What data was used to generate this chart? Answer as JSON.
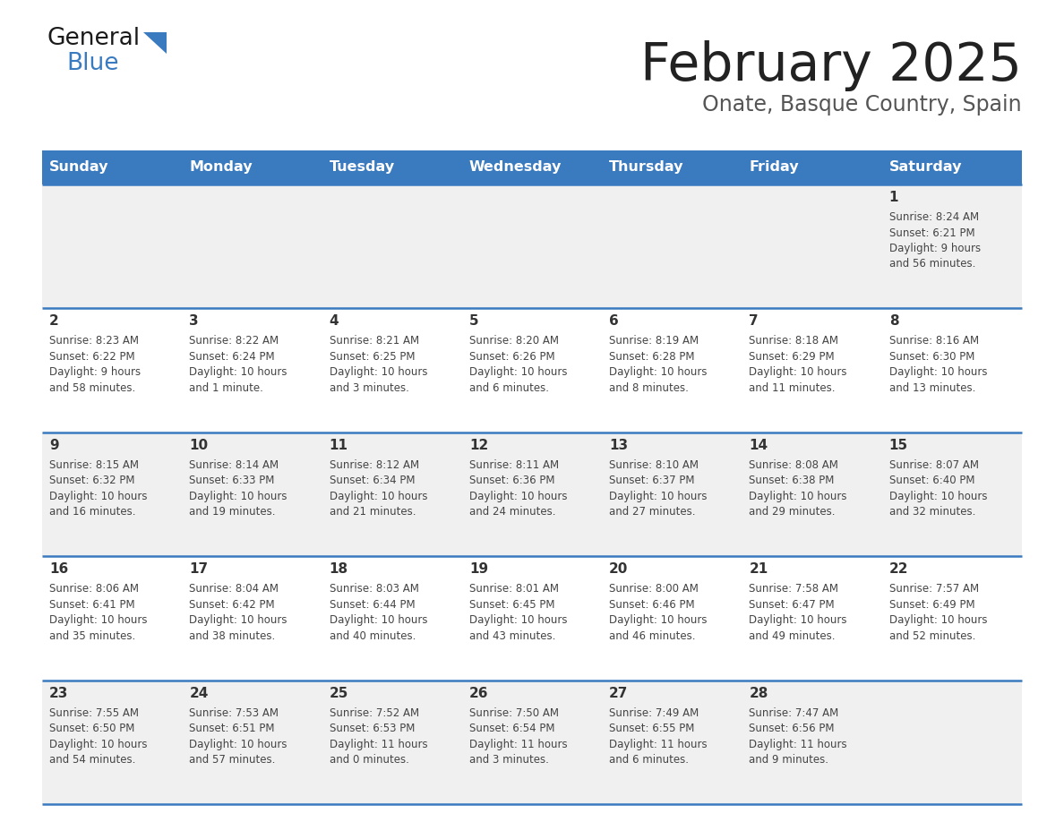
{
  "title": "February 2025",
  "subtitle": "Onate, Basque Country, Spain",
  "days_of_week": [
    "Sunday",
    "Monday",
    "Tuesday",
    "Wednesday",
    "Thursday",
    "Friday",
    "Saturday"
  ],
  "header_bg": "#3a7abf",
  "header_text": "#ffffff",
  "row_bg_light": "#f0f0f0",
  "row_bg_white": "#ffffff",
  "border_color": "#3a7abf",
  "day_number_color": "#333333",
  "cell_text_color": "#444444",
  "title_color": "#222222",
  "subtitle_color": "#555555",
  "weeks": [
    [
      {
        "day": null,
        "sunrise": null,
        "sunset": null,
        "daylight": null
      },
      {
        "day": null,
        "sunrise": null,
        "sunset": null,
        "daylight": null
      },
      {
        "day": null,
        "sunrise": null,
        "sunset": null,
        "daylight": null
      },
      {
        "day": null,
        "sunrise": null,
        "sunset": null,
        "daylight": null
      },
      {
        "day": null,
        "sunrise": null,
        "sunset": null,
        "daylight": null
      },
      {
        "day": null,
        "sunrise": null,
        "sunset": null,
        "daylight": null
      },
      {
        "day": 1,
        "sunrise": "8:24 AM",
        "sunset": "6:21 PM",
        "daylight": "9 hours\nand 56 minutes."
      }
    ],
    [
      {
        "day": 2,
        "sunrise": "8:23 AM",
        "sunset": "6:22 PM",
        "daylight": "9 hours\nand 58 minutes."
      },
      {
        "day": 3,
        "sunrise": "8:22 AM",
        "sunset": "6:24 PM",
        "daylight": "10 hours\nand 1 minute."
      },
      {
        "day": 4,
        "sunrise": "8:21 AM",
        "sunset": "6:25 PM",
        "daylight": "10 hours\nand 3 minutes."
      },
      {
        "day": 5,
        "sunrise": "8:20 AM",
        "sunset": "6:26 PM",
        "daylight": "10 hours\nand 6 minutes."
      },
      {
        "day": 6,
        "sunrise": "8:19 AM",
        "sunset": "6:28 PM",
        "daylight": "10 hours\nand 8 minutes."
      },
      {
        "day": 7,
        "sunrise": "8:18 AM",
        "sunset": "6:29 PM",
        "daylight": "10 hours\nand 11 minutes."
      },
      {
        "day": 8,
        "sunrise": "8:16 AM",
        "sunset": "6:30 PM",
        "daylight": "10 hours\nand 13 minutes."
      }
    ],
    [
      {
        "day": 9,
        "sunrise": "8:15 AM",
        "sunset": "6:32 PM",
        "daylight": "10 hours\nand 16 minutes."
      },
      {
        "day": 10,
        "sunrise": "8:14 AM",
        "sunset": "6:33 PM",
        "daylight": "10 hours\nand 19 minutes."
      },
      {
        "day": 11,
        "sunrise": "8:12 AM",
        "sunset": "6:34 PM",
        "daylight": "10 hours\nand 21 minutes."
      },
      {
        "day": 12,
        "sunrise": "8:11 AM",
        "sunset": "6:36 PM",
        "daylight": "10 hours\nand 24 minutes."
      },
      {
        "day": 13,
        "sunrise": "8:10 AM",
        "sunset": "6:37 PM",
        "daylight": "10 hours\nand 27 minutes."
      },
      {
        "day": 14,
        "sunrise": "8:08 AM",
        "sunset": "6:38 PM",
        "daylight": "10 hours\nand 29 minutes."
      },
      {
        "day": 15,
        "sunrise": "8:07 AM",
        "sunset": "6:40 PM",
        "daylight": "10 hours\nand 32 minutes."
      }
    ],
    [
      {
        "day": 16,
        "sunrise": "8:06 AM",
        "sunset": "6:41 PM",
        "daylight": "10 hours\nand 35 minutes."
      },
      {
        "day": 17,
        "sunrise": "8:04 AM",
        "sunset": "6:42 PM",
        "daylight": "10 hours\nand 38 minutes."
      },
      {
        "day": 18,
        "sunrise": "8:03 AM",
        "sunset": "6:44 PM",
        "daylight": "10 hours\nand 40 minutes."
      },
      {
        "day": 19,
        "sunrise": "8:01 AM",
        "sunset": "6:45 PM",
        "daylight": "10 hours\nand 43 minutes."
      },
      {
        "day": 20,
        "sunrise": "8:00 AM",
        "sunset": "6:46 PM",
        "daylight": "10 hours\nand 46 minutes."
      },
      {
        "day": 21,
        "sunrise": "7:58 AM",
        "sunset": "6:47 PM",
        "daylight": "10 hours\nand 49 minutes."
      },
      {
        "day": 22,
        "sunrise": "7:57 AM",
        "sunset": "6:49 PM",
        "daylight": "10 hours\nand 52 minutes."
      }
    ],
    [
      {
        "day": 23,
        "sunrise": "7:55 AM",
        "sunset": "6:50 PM",
        "daylight": "10 hours\nand 54 minutes."
      },
      {
        "day": 24,
        "sunrise": "7:53 AM",
        "sunset": "6:51 PM",
        "daylight": "10 hours\nand 57 minutes."
      },
      {
        "day": 25,
        "sunrise": "7:52 AM",
        "sunset": "6:53 PM",
        "daylight": "11 hours\nand 0 minutes."
      },
      {
        "day": 26,
        "sunrise": "7:50 AM",
        "sunset": "6:54 PM",
        "daylight": "11 hours\nand 3 minutes."
      },
      {
        "day": 27,
        "sunrise": "7:49 AM",
        "sunset": "6:55 PM",
        "daylight": "11 hours\nand 6 minutes."
      },
      {
        "day": 28,
        "sunrise": "7:47 AM",
        "sunset": "6:56 PM",
        "daylight": "11 hours\nand 9 minutes."
      },
      {
        "day": null,
        "sunrise": null,
        "sunset": null,
        "daylight": null
      }
    ]
  ]
}
